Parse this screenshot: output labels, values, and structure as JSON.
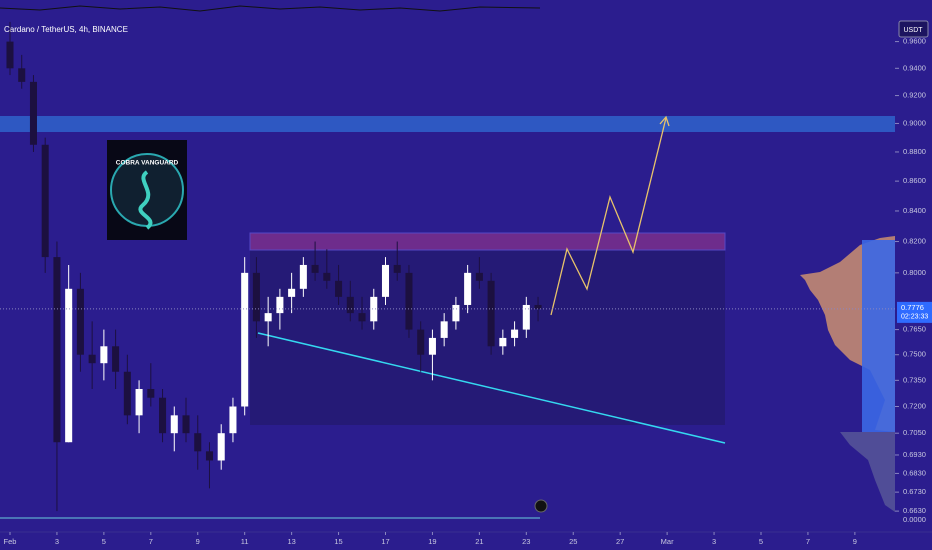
{
  "header": {
    "symbol": "Cardano / TetherUS, 4h, BINANCE",
    "currency": "USDT",
    "countdown": "02:23:33",
    "volume_axis_label": "0.0000"
  },
  "logo_text": "COBRA VANGUARD",
  "chart_data": {
    "type": "candlestick",
    "x": [
      1,
      1.5,
      2,
      2.5,
      3,
      3.5,
      4,
      4.5,
      5,
      5.5,
      6,
      6.5,
      7,
      7.5,
      8,
      8.5,
      9,
      9.5,
      10,
      10.5,
      11,
      11.5,
      12,
      12.5,
      13,
      13.5,
      14,
      14.5,
      15,
      15.5,
      16,
      16.5,
      17,
      17.5,
      18,
      18.5,
      19,
      19.5,
      20,
      20.5,
      21,
      21.5,
      22,
      22.5,
      23,
      23.5
    ],
    "open": [
      0.96,
      0.94,
      0.93,
      0.885,
      0.81,
      0.7,
      0.79,
      0.75,
      0.745,
      0.755,
      0.74,
      0.715,
      0.73,
      0.725,
      0.705,
      0.715,
      0.705,
      0.695,
      0.69,
      0.705,
      0.72,
      0.8,
      0.77,
      0.775,
      0.785,
      0.79,
      0.805,
      0.8,
      0.795,
      0.785,
      0.775,
      0.77,
      0.785,
      0.805,
      0.8,
      0.765,
      0.75,
      0.76,
      0.77,
      0.78,
      0.8,
      0.795,
      0.755,
      0.76,
      0.765,
      0.78
    ],
    "high": [
      0.975,
      0.95,
      0.935,
      0.89,
      0.82,
      0.805,
      0.8,
      0.77,
      0.765,
      0.765,
      0.75,
      0.735,
      0.745,
      0.73,
      0.72,
      0.725,
      0.715,
      0.7,
      0.71,
      0.725,
      0.81,
      0.81,
      0.785,
      0.79,
      0.8,
      0.81,
      0.82,
      0.815,
      0.805,
      0.795,
      0.785,
      0.79,
      0.81,
      0.82,
      0.805,
      0.77,
      0.765,
      0.775,
      0.785,
      0.805,
      0.81,
      0.8,
      0.765,
      0.77,
      0.785,
      0.785
    ],
    "low": [
      0.935,
      0.925,
      0.88,
      0.8,
      0.663,
      0.7,
      0.74,
      0.73,
      0.735,
      0.73,
      0.71,
      0.705,
      0.72,
      0.7,
      0.695,
      0.7,
      0.685,
      0.675,
      0.685,
      0.7,
      0.715,
      0.76,
      0.755,
      0.765,
      0.775,
      0.785,
      0.795,
      0.79,
      0.78,
      0.77,
      0.765,
      0.765,
      0.78,
      0.795,
      0.76,
      0.74,
      0.735,
      0.755,
      0.765,
      0.775,
      0.79,
      0.75,
      0.75,
      0.755,
      0.76,
      0.77
    ],
    "close": [
      0.94,
      0.93,
      0.885,
      0.81,
      0.7,
      0.79,
      0.75,
      0.745,
      0.755,
      0.74,
      0.715,
      0.73,
      0.725,
      0.705,
      0.715,
      0.705,
      0.695,
      0.69,
      0.705,
      0.72,
      0.8,
      0.77,
      0.775,
      0.785,
      0.79,
      0.805,
      0.8,
      0.795,
      0.785,
      0.775,
      0.77,
      0.785,
      0.805,
      0.8,
      0.765,
      0.75,
      0.76,
      0.77,
      0.78,
      0.8,
      0.795,
      0.755,
      0.76,
      0.765,
      0.78,
      0.7776
    ],
    "up_color": "#ffffff",
    "down_color": "#1c1040",
    "log_scale": true,
    "ylim": [
      0.6532,
      0.992
    ],
    "yticks": [
      {
        "value": 0.96,
        "label": "0.9600"
      },
      {
        "value": 0.94,
        "label": "0.9400"
      },
      {
        "value": 0.92,
        "label": "0.9200"
      },
      {
        "value": 0.9,
        "label": "0.9000"
      },
      {
        "value": 0.88,
        "label": "0.8800"
      },
      {
        "value": 0.86,
        "label": "0.8600"
      },
      {
        "value": 0.84,
        "label": "0.8400"
      },
      {
        "value": 0.82,
        "label": "0.8200"
      },
      {
        "value": 0.8,
        "label": "0.8000"
      },
      {
        "value": 0.765,
        "label": "0.7650"
      },
      {
        "value": 0.75,
        "label": "0.7500"
      },
      {
        "value": 0.735,
        "label": "0.7350"
      },
      {
        "value": 0.72,
        "label": "0.7200"
      },
      {
        "value": 0.705,
        "label": "0.7050"
      },
      {
        "value": 0.693,
        "label": "0.6930"
      },
      {
        "value": 0.683,
        "label": "0.6830"
      },
      {
        "value": 0.673,
        "label": "0.6730"
      },
      {
        "value": 0.663,
        "label": "0.6630"
      }
    ],
    "xlim": [
      0.574,
      38.71
    ],
    "xticks": [
      {
        "value": 1,
        "label": "Feb"
      },
      3,
      5,
      7,
      9,
      11,
      13,
      15,
      17,
      19,
      21,
      23,
      25,
      27,
      {
        "value": 29,
        "label": "Mar"
      },
      {
        "value": 31,
        "label": "3"
      },
      {
        "value": 33,
        "label": "5"
      },
      {
        "value": 35,
        "label": "7"
      },
      {
        "value": 37,
        "label": "9"
      }
    ],
    "last_price": 0.7776,
    "last_price_color": "#2f6bff"
  }
}
